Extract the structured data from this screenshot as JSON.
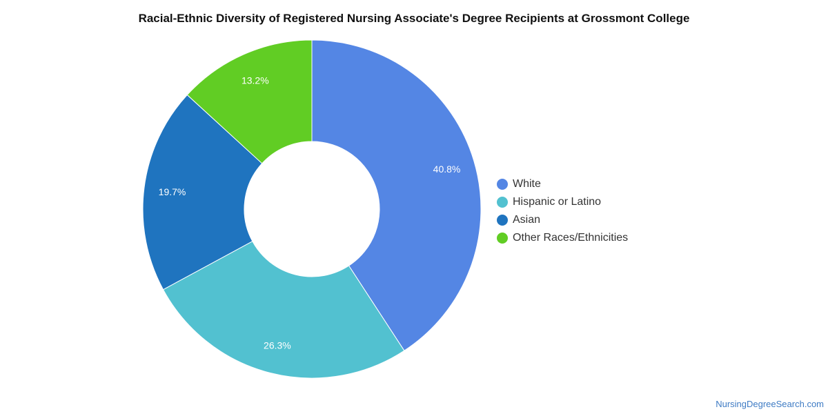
{
  "chart_data": {
    "type": "pie",
    "style": "donut",
    "title": "Racial-Ethnic Diversity of Registered Nursing Associate's Degree Recipients at Grossmont College",
    "legend_position": "right",
    "series": [
      {
        "name": "White",
        "value": 40.8,
        "label": "40.8%",
        "color": "#5486e4"
      },
      {
        "name": "Hispanic or Latino",
        "value": 26.3,
        "label": "26.3%",
        "color": "#52c1d0"
      },
      {
        "name": "Asian",
        "value": 19.7,
        "label": "19.7%",
        "color": "#1f74bf"
      },
      {
        "name": "Other Races/Ethnicities",
        "value": 13.2,
        "label": "13.2%",
        "color": "#61cd24"
      }
    ]
  },
  "footer": {
    "source": "NursingDegreeSearch.com"
  }
}
